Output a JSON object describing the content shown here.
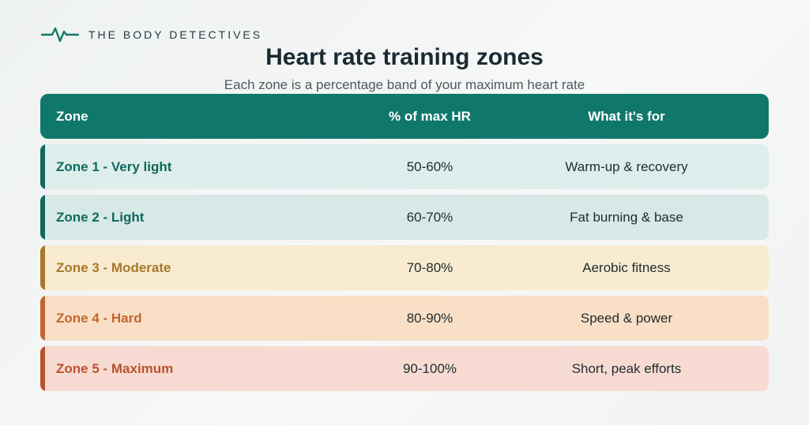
{
  "brand": {
    "name": "THE BODY DETECTIVES",
    "icon": "heartbeat-pulse-icon",
    "color": "#10786b"
  },
  "title": "Heart rate training zones",
  "subtitle": "Each zone is a percentage band of your maximum heart rate",
  "table": {
    "headers": [
      "Zone",
      "% of max HR",
      "What it's for"
    ],
    "header_color": "#10786b",
    "rows": [
      {
        "zone": "Zone 1 - Very light",
        "pct": "50-60%",
        "purpose": "Warm-up & recovery",
        "accent": "#10695e",
        "bg": "#deeeec"
      },
      {
        "zone": "Zone 2 - Light",
        "pct": "60-70%",
        "purpose": "Fat burning & base",
        "accent": "#10695e",
        "bg": "#d6e9e6"
      },
      {
        "zone": "Zone 3 - Moderate",
        "pct": "70-80%",
        "purpose": "Aerobic fitness",
        "accent": "#a8782a",
        "bg": "#f8ebcf"
      },
      {
        "zone": "Zone 4 - Hard",
        "pct": "80-90%",
        "purpose": "Speed & power",
        "accent": "#c2652f",
        "bg": "#f8dfc6"
      },
      {
        "zone": "Zone 5 - Maximum",
        "pct": "90-100%",
        "purpose": "Short, peak efforts",
        "accent": "#b8532f",
        "bg": "#f7dbd2"
      }
    ]
  }
}
